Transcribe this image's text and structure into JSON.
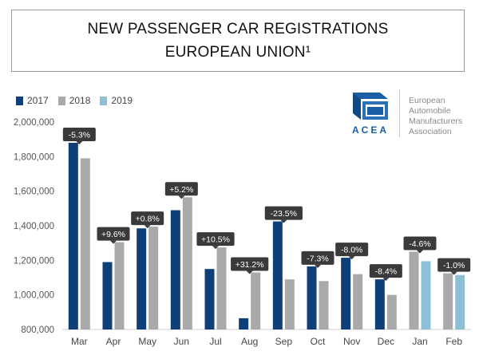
{
  "chart_data": {
    "type": "bar",
    "title_line1": "NEW PASSENGER CAR REGISTRATIONS",
    "title_line2": "EUROPEAN UNION¹",
    "xlabel": "",
    "ylabel": "",
    "ylim": [
      800000,
      2000000
    ],
    "yticks": [
      "2,000,000",
      "1,800,000",
      "1,600,000",
      "1,400,000",
      "1,200,000",
      "1,000,000",
      "800,000"
    ],
    "ytick_values": [
      2000000,
      1800000,
      1600000,
      1400000,
      1200000,
      1000000,
      800000
    ],
    "categories": [
      "Mar",
      "Apr",
      "May",
      "Jun",
      "Jul",
      "Aug",
      "Sep",
      "Oct",
      "Nov",
      "Dec",
      "Jan",
      "Feb"
    ],
    "series": [
      {
        "name": "2017",
        "color": "#0f3f78",
        "values": [
          1880000,
          1190000,
          1385000,
          1490000,
          1150000,
          865000,
          1425000,
          1165000,
          1215000,
          1090000,
          null,
          null
        ]
      },
      {
        "name": "2018",
        "color": "#a9a9ab",
        "values": [
          1790000,
          1305000,
          1395000,
          1565000,
          1275000,
          1130000,
          1090000,
          1080000,
          1120000,
          1000000,
          1250000,
          1125000
        ]
      },
      {
        "name": "2019",
        "color": "#8dbfd6",
        "values": [
          null,
          null,
          null,
          null,
          null,
          null,
          null,
          null,
          null,
          null,
          1195000,
          1115000
        ]
      }
    ],
    "change_labels": [
      "-5.3%",
      "+9.6%",
      "+0.8%",
      "+5.2%",
      "+10.5%",
      "+31.2%",
      "-23.5%",
      "-7.3%",
      "-8.0%",
      "-8.4%",
      "-4.6%",
      "-1.0%"
    ],
    "label_color": "#3a3a3c"
  },
  "logo": {
    "acronym": "ACEA",
    "name_lines": [
      "European",
      "Automobile",
      "Manufacturers",
      "Association"
    ],
    "color": "#1a5fa3"
  }
}
